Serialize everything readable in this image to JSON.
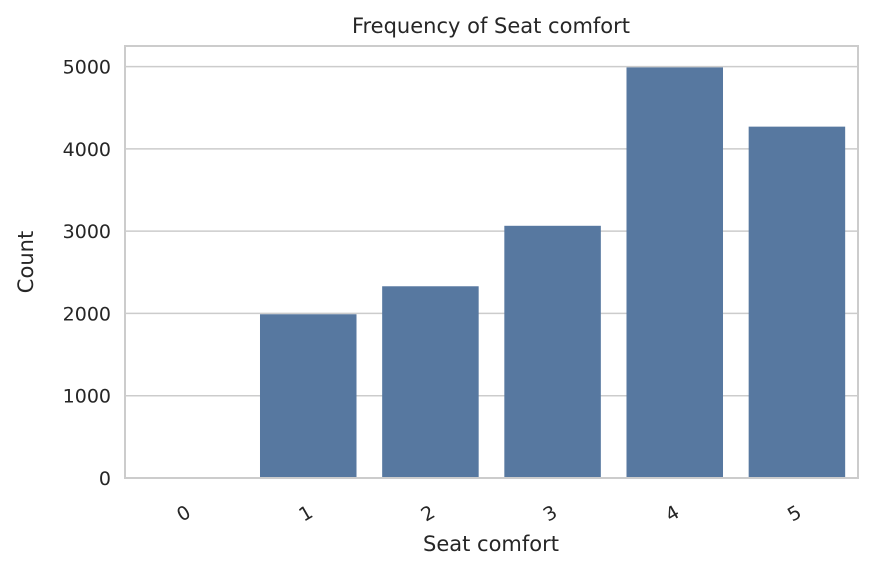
{
  "chart_data": {
    "type": "bar",
    "title": "Frequency of Seat comfort",
    "xlabel": "Seat comfort",
    "ylabel": "Count",
    "categories": [
      "0",
      "1",
      "2",
      "3",
      "4",
      "5"
    ],
    "values": [
      1,
      1990,
      2330,
      3065,
      4990,
      4270
    ],
    "ylim": [
      0,
      5250
    ],
    "yticks": [
      0,
      1000,
      2000,
      3000,
      4000,
      5000
    ],
    "ytick_labels": [
      "0",
      "1000",
      "2000",
      "3000",
      "4000",
      "5000"
    ],
    "grid": "horizontal",
    "bar_color": "#5778a0",
    "x_tick_rotation": "30 degrees"
  }
}
